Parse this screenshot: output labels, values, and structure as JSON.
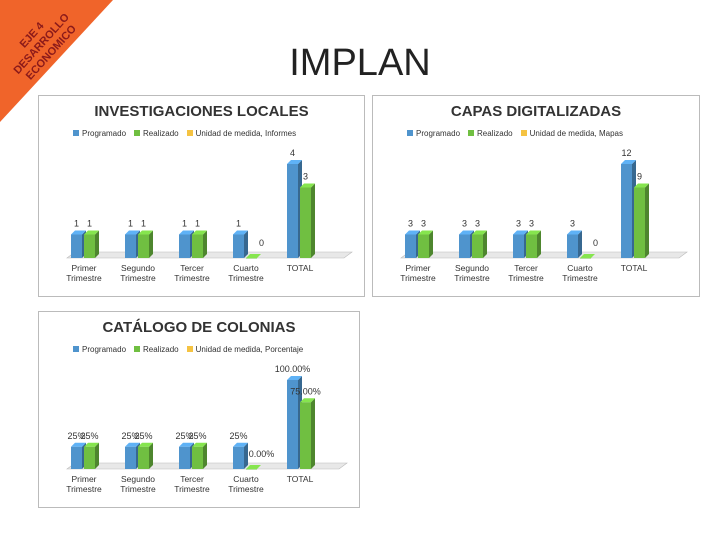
{
  "title": "IMPLAN",
  "corner_label": [
    "EJE 4",
    "DESARROLLO",
    "ECONOMICO"
  ],
  "chart_data": [
    {
      "type": "bar",
      "title": "INVESTIGACIONES LOCALES",
      "categories": [
        "Primer Trimestre",
        "Segundo Trimestre",
        "Tercer Trimestre",
        "Cuarto Trimestre",
        "TOTAL"
      ],
      "series": [
        {
          "name": "Programado",
          "color": "#4f94cd",
          "values": [
            1,
            1,
            1,
            1,
            4
          ]
        },
        {
          "name": "Realizado",
          "color": "#70bf41",
          "values": [
            1,
            1,
            1,
            0,
            3
          ]
        },
        {
          "name": "Unidad de medida, Informes",
          "color": "#f5c342",
          "values": [
            null,
            null,
            null,
            null,
            null
          ]
        }
      ]
    },
    {
      "type": "bar",
      "title": "CAPAS DIGITALIZADAS",
      "categories": [
        "Primer Trimestre",
        "Segundo Trimestre",
        "Tercer Trimestre",
        "Cuarto Trimestre",
        "TOTAL"
      ],
      "series": [
        {
          "name": "Programado",
          "color": "#4f94cd",
          "values": [
            3,
            3,
            3,
            3,
            12
          ]
        },
        {
          "name": "Realizado",
          "color": "#70bf41",
          "values": [
            3,
            3,
            3,
            0,
            9
          ]
        },
        {
          "name": "Unidad de medida, Mapas",
          "color": "#f5c342",
          "values": [
            null,
            null,
            null,
            null,
            null
          ]
        }
      ]
    },
    {
      "type": "bar",
      "title": "CATÁLOGO DE COLONIAS",
      "categories": [
        "Primer Trimestre",
        "Segundo Trimestre",
        "Tercer Trimestre",
        "Cuarto Trimestre",
        "TOTAL"
      ],
      "series": [
        {
          "name": "Programado",
          "color": "#4f94cd",
          "values": [
            25,
            25,
            25,
            25,
            100
          ],
          "value_labels": [
            "25%",
            "25%",
            "25%",
            "25%",
            "100.00%"
          ]
        },
        {
          "name": "Realizado",
          "color": "#70bf41",
          "values": [
            25,
            25,
            25,
            0,
            75
          ],
          "value_labels": [
            "25%",
            "25%",
            "25%",
            "0.00%",
            "75.00%"
          ]
        },
        {
          "name": "Unidad de medida, Porcentaje",
          "color": "#f5c342",
          "values": [
            null,
            null,
            null,
            null,
            null
          ]
        }
      ]
    }
  ]
}
